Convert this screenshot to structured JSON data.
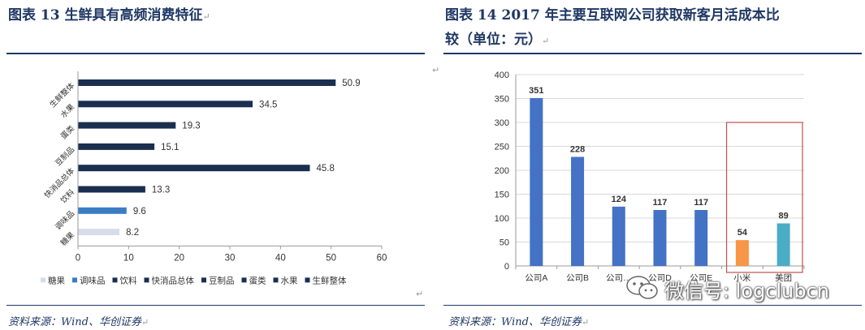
{
  "left": {
    "title": "图表 13   生鲜具有高频消费特征",
    "source": "资料来源：Wind、华创证券",
    "chart_data": {
      "type": "bar",
      "orientation": "horizontal",
      "categories": [
        "生鲜整体",
        "水果",
        "蛋类",
        "豆制品",
        "快消品总体",
        "饮料",
        "调味品",
        "糖果"
      ],
      "values": [
        50.9,
        34.5,
        19.3,
        15.1,
        45.8,
        13.3,
        9.6,
        8.2
      ],
      "value_labels": [
        "50.9",
        "34.5",
        "19.3",
        "15.1",
        "45.8",
        "13.3",
        "9.6",
        "8.2"
      ],
      "xlim": [
        0,
        60
      ],
      "x_ticks": [
        0,
        10,
        20,
        30,
        40,
        50,
        60
      ],
      "grid": false,
      "legend_position": "bottom",
      "legend": [
        "糖果",
        "调味品",
        "饮料",
        "快消品总体",
        "豆制品",
        "蛋类",
        "水果",
        "生鲜整体"
      ],
      "colors": {
        "生鲜整体": "#1a2e4f",
        "水果": "#1a2e4f",
        "蛋类": "#1a2e4f",
        "豆制品": "#1a2e4f",
        "快消品总体": "#1a2e4f",
        "饮料": "#1a2e4f",
        "调味品": "#3b7dc4",
        "糖果": "#d6dde9"
      }
    }
  },
  "right": {
    "title_line1": "图表 14   2017 年主要互联网公司获取新客月活成本比",
    "title_line2": "较（单位：元）",
    "source": "资料来源：Wind、华创证券",
    "chart_data": {
      "type": "bar",
      "categories": [
        "公司A",
        "公司B",
        "公司C",
        "公司D",
        "公司E",
        "小米",
        "美团"
      ],
      "category_labels": [
        "公司A",
        "公司B",
        "公司…",
        "公司D",
        "公司E",
        "小米",
        "美团"
      ],
      "values": [
        351,
        228,
        124,
        117,
        117,
        54,
        89
      ],
      "value_labels": [
        "351",
        "228",
        "124",
        "117",
        "117",
        "54",
        "89"
      ],
      "ylim": [
        0,
        400
      ],
      "y_ticks": [
        0,
        50,
        100,
        150,
        200,
        250,
        300,
        350,
        400
      ],
      "grid": true,
      "colors": [
        "#4472c4",
        "#4472c4",
        "#4472c4",
        "#4472c4",
        "#4472c4",
        "#f79646",
        "#4bacc6"
      ],
      "highlight_box_categories": [
        "小米",
        "美团"
      ],
      "highlight_box_color": "#c0504d"
    }
  },
  "watermark": {
    "text": "微信号: logclubcn",
    "icon": "wechat-icon"
  },
  "marks": {
    "return": "↵"
  }
}
